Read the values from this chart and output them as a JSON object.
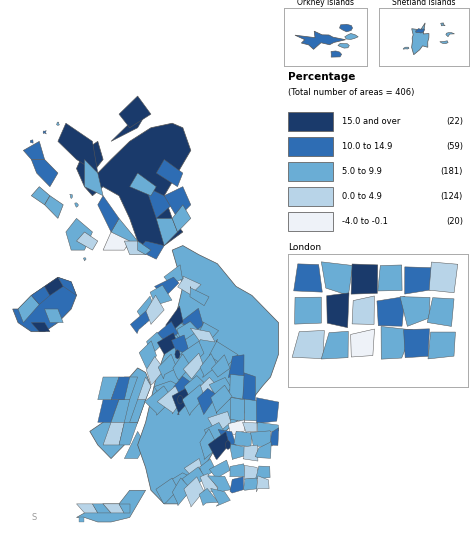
{
  "legend_title": "Percentage",
  "legend_subtitle": "(Total number of areas = 406)",
  "legend_categories": [
    {
      "label": "15.0 and over",
      "count": "(22)",
      "color": "#1a3a6b"
    },
    {
      "label": "10.0 to 14.9",
      "count": "(59)",
      "color": "#2e6db4"
    },
    {
      "label": "5.0 to 9.9",
      "count": "(181)",
      "color": "#6aadd5"
    },
    {
      "label": "0.0 to 4.9",
      "count": "(124)",
      "color": "#b8d4e8"
    },
    {
      "label": "-4.0 to -0.1",
      "count": "(20)",
      "color": "#eef2f8"
    }
  ],
  "background_color": "#ffffff",
  "figure_width": 4.74,
  "figure_height": 5.41,
  "dpi": 100
}
